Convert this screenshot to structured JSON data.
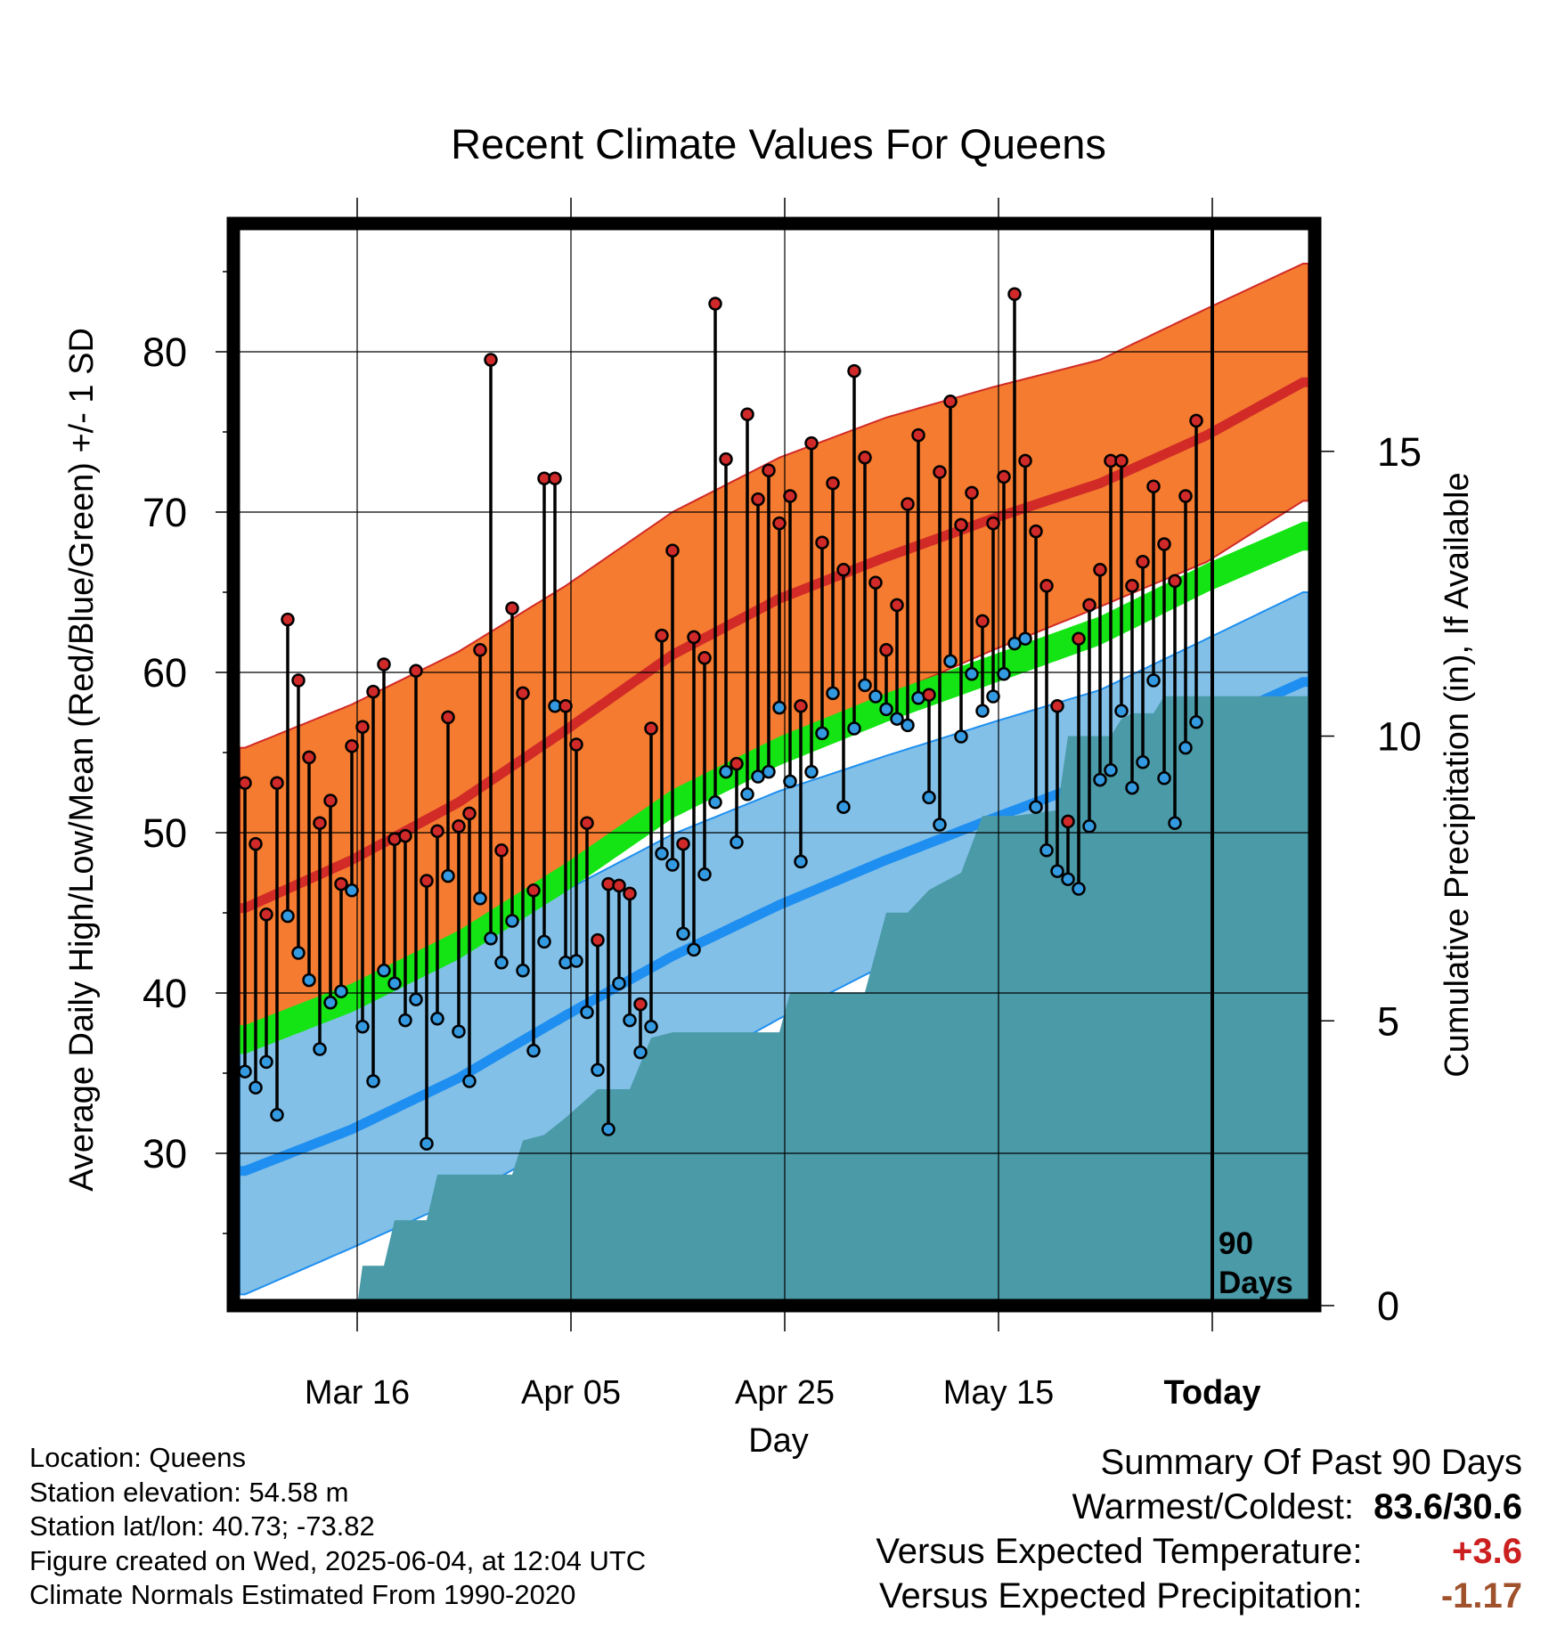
{
  "chart_data": {
    "type": "line",
    "title": "Recent Climate Values For Queens",
    "xlabel": "Day",
    "ylabel": "Average Daily High/Low/Mean (Red/Blue/Green) +/- 1 SD",
    "y2label": "Cumulative Precipitation (in), If Available",
    "ylim": [
      20.5,
      88
    ],
    "y2lim": [
      0,
      19
    ],
    "xlim": [
      -0.5,
      99.5
    ],
    "x_ticks": [
      {
        "day": 10.5,
        "label": "Mar 16"
      },
      {
        "day": 30.5,
        "label": "Apr 05"
      },
      {
        "day": 50.5,
        "label": "Apr 25"
      },
      {
        "day": 70.5,
        "label": "May 15"
      },
      {
        "day": 90.5,
        "label": "Today",
        "bold": true
      }
    ],
    "y_ticks": [
      30,
      40,
      50,
      60,
      70,
      80
    ],
    "y2_ticks": [
      0,
      5,
      10,
      15
    ],
    "today_marker": {
      "day": 90.5,
      "label_line1": "90",
      "label_line2": "Days"
    },
    "grid": true,
    "colors": {
      "high_band": "#f47b30",
      "high_line": "#d12a27",
      "low_band": "#82c0e8",
      "low_line": "#1e8ff0",
      "mean_band": "#14e414",
      "precip": "#4a9aa8",
      "high_dot": "#d02929",
      "low_dot": "#3399e0"
    },
    "normals": {
      "days": [
        0,
        10,
        20,
        30,
        40,
        50,
        60,
        70,
        80,
        90,
        99
      ],
      "high_mean": [
        45.3,
        48.3,
        51.9,
        56.4,
        61.1,
        64.6,
        67.2,
        69.6,
        71.8,
        74.8,
        78.1
      ],
      "high_sd": [
        10.0,
        9.7,
        9.4,
        9.0,
        8.9,
        8.8,
        8.7,
        8.2,
        7.7,
        7.9,
        7.4
      ],
      "low_mean": [
        28.9,
        31.5,
        34.7,
        38.6,
        42.3,
        45.5,
        48.3,
        50.9,
        53.4,
        56.7,
        59.4
      ],
      "low_sd": [
        7.7,
        7.4,
        7.6,
        7.8,
        7.6,
        7.1,
        6.5,
        6.0,
        5.5,
        5.4,
        5.6
      ],
      "mean_mean": [
        37.1,
        39.7,
        43.0,
        47.2,
        51.8,
        55.1,
        57.8,
        60.2,
        62.6,
        65.9,
        68.5
      ],
      "mean_half_width": 0.9
    },
    "series": [
      {
        "name": "High",
        "values": [
          53.1,
          49.3,
          44.9,
          53.1,
          63.3,
          59.5,
          54.7,
          50.6,
          52.0,
          46.8,
          55.4,
          56.6,
          58.8,
          60.5,
          49.6,
          49.8,
          60.1,
          47.0,
          50.1,
          57.2,
          50.4,
          51.2,
          61.4,
          79.5,
          48.9,
          64.0,
          58.7,
          46.4,
          72.1,
          72.1,
          57.9,
          55.5,
          50.6,
          43.3,
          46.8,
          46.7,
          46.2,
          39.3,
          56.5,
          62.3,
          67.6,
          49.3,
          62.2,
          60.9,
          83.0,
          73.3,
          54.3,
          76.1,
          70.8,
          72.6,
          69.3,
          71.0,
          57.9,
          74.3,
          68.1,
          71.8,
          66.4,
          78.8,
          73.4,
          65.6,
          61.4,
          64.2,
          70.5,
          74.8,
          58.6,
          72.5,
          76.9,
          69.2,
          71.2,
          63.2,
          69.3,
          72.2,
          83.6,
          73.2,
          68.8,
          65.4,
          57.9,
          50.7,
          62.1,
          64.2,
          66.4,
          73.2,
          73.2,
          65.4,
          66.9,
          71.6,
          68.0,
          65.7,
          71.0,
          75.7
        ]
      },
      {
        "name": "Low",
        "values": [
          35.1,
          34.1,
          35.7,
          32.4,
          44.8,
          42.5,
          40.8,
          36.5,
          39.4,
          40.1,
          46.4,
          37.9,
          34.5,
          41.4,
          40.6,
          38.3,
          39.6,
          30.6,
          38.4,
          47.3,
          37.6,
          34.5,
          45.9,
          43.4,
          41.9,
          44.5,
          41.4,
          36.4,
          43.2,
          57.9,
          41.9,
          42.0,
          38.8,
          35.2,
          31.5,
          40.6,
          38.3,
          36.3,
          37.9,
          48.7,
          48.0,
          43.7,
          42.7,
          47.4,
          51.9,
          53.8,
          49.4,
          52.4,
          53.5,
          53.8,
          57.8,
          53.2,
          48.2,
          53.8,
          56.2,
          58.7,
          51.6,
          56.5,
          59.2,
          58.5,
          57.7,
          57.1,
          56.7,
          58.4,
          52.2,
          50.5,
          60.7,
          56.0,
          59.9,
          57.6,
          58.5,
          59.9,
          61.8,
          62.1,
          51.6,
          48.9,
          47.6,
          47.1,
          46.5,
          50.4,
          53.3,
          53.9,
          57.6,
          52.8,
          54.4,
          59.5,
          53.4,
          50.6,
          55.3,
          56.9
        ]
      }
    ],
    "precip_cumulative": {
      "days": [
        -0.5,
        10.5,
        11,
        13,
        14,
        17,
        18,
        21,
        22,
        25,
        26,
        28,
        30,
        33,
        36,
        38,
        40,
        50,
        51,
        58,
        60,
        62,
        64,
        67,
        69,
        72,
        76,
        77,
        81,
        82,
        83,
        85,
        86,
        99.5
      ],
      "values": [
        0,
        0,
        0.7,
        0.7,
        1.5,
        1.5,
        2.3,
        2.3,
        2.3,
        2.3,
        2.9,
        3.0,
        3.3,
        3.8,
        3.8,
        4.7,
        4.8,
        4.8,
        5.5,
        5.5,
        6.9,
        6.9,
        7.3,
        7.6,
        8.6,
        8.6,
        8.7,
        10.0,
        10.0,
        10.3,
        10.4,
        10.4,
        10.7,
        10.7
      ]
    }
  },
  "title": "Recent Climate Values For Queens",
  "xlabel": "Day",
  "ylabel": "Average Daily High/Low/Mean (Red/Blue/Green) +/- 1 SD",
  "y2label": "Cumulative Precipitation (in), If Available",
  "info": {
    "location": "Location: Queens",
    "elevation": "Station elevation: 54.58 m",
    "latlon": "Station lat/lon: 40.73; -73.82",
    "created": "Figure created on Wed, 2025-06-04, at 12:04 UTC",
    "normals": "Climate Normals Estimated From 1990-2020"
  },
  "summary": {
    "heading": "Summary Of Past 90 Days",
    "warm_cold_label": "Warmest/Coldest:",
    "warm_cold_value": "83.6/30.6",
    "temp_label": "Versus Expected Temperature:",
    "temp_value": "+3.6",
    "temp_color": "#cc2020",
    "precip_label": "Versus Expected Precipitation:",
    "precip_value": "-1.17",
    "precip_color": "#a0522d"
  }
}
